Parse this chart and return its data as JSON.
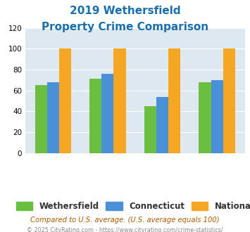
{
  "title_line1": "2019 Wethersfield",
  "title_line2": "Property Crime Comparison",
  "title_color": "#1a6faf",
  "wethersfield": [
    65,
    71,
    45,
    68
  ],
  "connecticut": [
    68,
    76,
    54,
    70
  ],
  "national": [
    100,
    100,
    100,
    100
  ],
  "colors": {
    "wethersfield": "#6abf40",
    "connecticut": "#4a90d9",
    "national": "#f5a623"
  },
  "ylim": [
    0,
    120
  ],
  "yticks": [
    0,
    20,
    40,
    60,
    80,
    100,
    120
  ],
  "background_color": "#dde8f0",
  "legend_labels": [
    "Wethersfield",
    "Connecticut",
    "National"
  ],
  "footnote": "Compared to U.S. average. (U.S. average equals 100)",
  "footnote2": "© 2025 CityRating.com - https://www.cityrating.com/crime-statistics/",
  "footnote_color": "#b05a00",
  "footnote2_color": "#888888",
  "bar_width": 0.22,
  "group_positions": [
    0,
    1,
    2,
    3
  ]
}
